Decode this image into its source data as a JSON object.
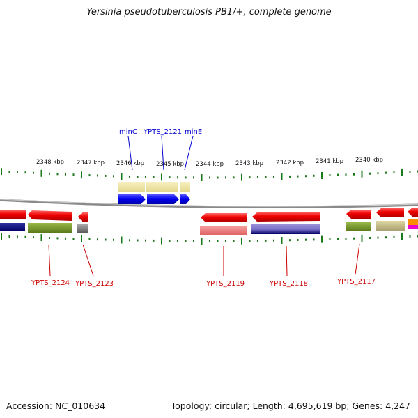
{
  "title": "Yersinia pseudotuberculosis PB1/+, complete genome",
  "footer": {
    "accession": "Accession: NC_010634",
    "summary": "Topology: circular; Length: 4,695,619 bp; Genes: 4,247"
  },
  "scale_labels": [
    "2348 kbp",
    "2347 kbp",
    "2346 kbp",
    "2345 kbp",
    "2344 kbp",
    "2343 kbp",
    "2342 kbp",
    "2341 kbp",
    "2340 kbp"
  ],
  "gene_labels_top": [
    "minC",
    "YPTS_2121",
    "minE"
  ],
  "gene_labels_bottom": [
    "YPTS_2124",
    "YPTS_2123",
    "YPTS_2119",
    "YPTS_2118",
    "YPTS_2117"
  ],
  "colors": {
    "backbone": "#8a8a8a",
    "forward_cds": "#0000ee",
    "reverse_cds": "#ee0000",
    "tick": "#1a7a1a"
  }
}
